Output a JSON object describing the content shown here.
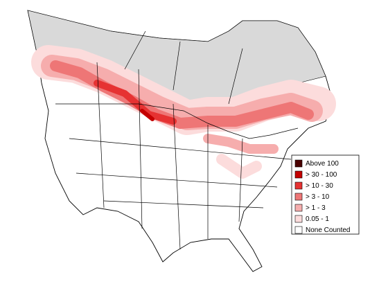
{
  "legend": {
    "items": [
      {
        "label": "Above 100",
        "color": "#4a0000"
      },
      {
        "label": "> 30 - 100",
        "color": "#c40000"
      },
      {
        "label": "> 10 - 30",
        "color": "#e63232"
      },
      {
        "label": "> 3 - 10",
        "color": "#ee7676"
      },
      {
        "label": "> 1 - 3",
        "color": "#f6adad"
      },
      {
        "label": "0.05 - 1",
        "color": "#fcdcdc"
      },
      {
        "label": "None Counted",
        "color": "#ffffff"
      }
    ]
  }
}
